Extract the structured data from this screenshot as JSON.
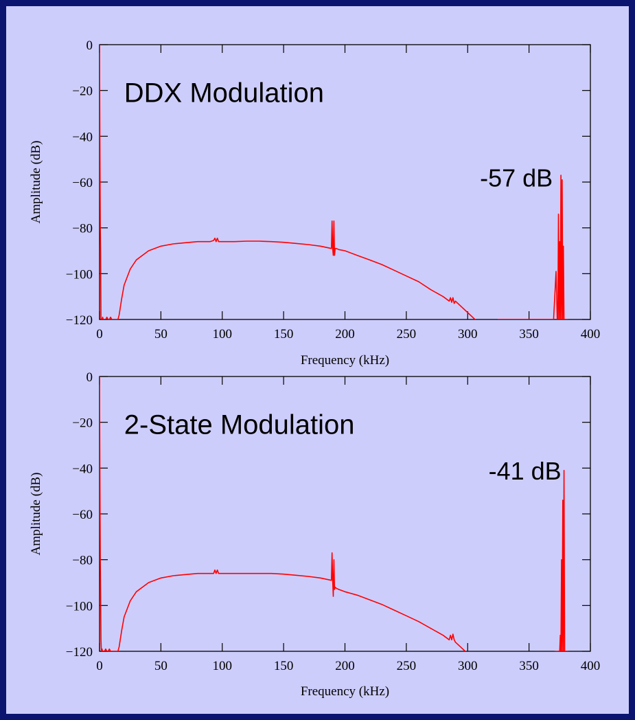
{
  "colors": {
    "background": "#cdcdfb",
    "border": "#0b1570",
    "trace": "#ff0000",
    "axis": "#000000"
  },
  "chart_data": [
    {
      "type": "line",
      "annotations": [
        {
          "text": "DDX Modulation",
          "x": 20,
          "y": -25
        },
        {
          "text": "-57 dB",
          "x": 310,
          "y": -62
        }
      ],
      "xlabel": "Frequency (kHz)",
      "ylabel": "Amplitude (dB)",
      "xlim": [
        0,
        400
      ],
      "ylim": [
        -120,
        0
      ],
      "xticks": [
        0,
        50,
        100,
        150,
        200,
        250,
        300,
        350,
        400
      ],
      "yticks": [
        0,
        -20,
        -40,
        -60,
        -80,
        -100,
        -120
      ],
      "grid": false,
      "series": [
        {
          "x": [
            0,
            0.3,
            0.6,
            0.9,
            1.2,
            1.5,
            1.8,
            2,
            2.5,
            3,
            4,
            5,
            6,
            7,
            8,
            9,
            10,
            12,
            14,
            15,
            16,
            18,
            20,
            25,
            30,
            40,
            50,
            60,
            70,
            80,
            90,
            93,
            94,
            95,
            96,
            97,
            98,
            100,
            110,
            120,
            130,
            140,
            150,
            160,
            170,
            180,
            189,
            189.5,
            190,
            190.5,
            191,
            191.5,
            192,
            193,
            195,
            200,
            210,
            220,
            230,
            240,
            250,
            260,
            270,
            280,
            285,
            286,
            287,
            288,
            289,
            290,
            300,
            310,
            320,
            325,
            370,
            372,
            373,
            373.5,
            374,
            374.5,
            375,
            375.5,
            376,
            376.5,
            377,
            377.5,
            378,
            378.5,
            379,
            379.5,
            380,
            380.5,
            381,
            381.5,
            382
          ],
          "y": [
            0,
            -40,
            -80,
            -91,
            -120,
            -120,
            -120,
            -120,
            -119,
            -120,
            -120,
            -120,
            -119,
            -120,
            -120,
            -119,
            -120,
            -120,
            -120,
            -120,
            -118,
            -111,
            -105,
            -98,
            -94,
            -90,
            -88,
            -87,
            -86.5,
            -86,
            -86,
            -85.5,
            -84.5,
            -86,
            -84.5,
            -86,
            -86,
            -86,
            -86,
            -85.8,
            -85.8,
            -86,
            -86.3,
            -86.8,
            -87.3,
            -88,
            -89,
            -77,
            -89,
            -92,
            -77,
            -92,
            -89,
            -89,
            -89.5,
            -90,
            -92,
            -94,
            -96,
            -98.5,
            -101,
            -103.5,
            -107,
            -110,
            -112,
            -110.5,
            -112.5,
            -110.5,
            -113,
            -112,
            -117,
            -122,
            -127,
            -120,
            -120,
            -99,
            -120,
            -120,
            -74,
            -120,
            -86,
            -120,
            -57,
            -120,
            -59,
            -120,
            -88,
            -120,
            -120,
            -120,
            -120,
            -120,
            -120,
            -120,
            -120
          ]
        }
      ]
    },
    {
      "type": "line",
      "annotations": [
        {
          "text": "2-State Modulation",
          "x": 20,
          "y": -25
        },
        {
          "text": "-41 dB",
          "x": 317,
          "y": -45
        }
      ],
      "xlabel": "Frequency (kHz)",
      "ylabel": "Amplitude (dB)",
      "xlim": [
        0,
        400
      ],
      "ylim": [
        -120,
        0
      ],
      "xticks": [
        0,
        50,
        100,
        150,
        200,
        250,
        300,
        350,
        400
      ],
      "yticks": [
        0,
        -20,
        -40,
        -60,
        -80,
        -100,
        -120
      ],
      "grid": false,
      "series": [
        {
          "x": [
            0,
            0.3,
            0.6,
            0.9,
            1.2,
            1.5,
            2,
            2.5,
            3,
            4,
            5,
            6,
            7,
            8,
            9,
            10,
            12,
            14,
            15,
            16,
            18,
            20,
            25,
            30,
            40,
            50,
            60,
            70,
            80,
            90,
            93,
            94,
            95,
            96,
            97,
            98,
            100,
            110,
            120,
            130,
            140,
            150,
            160,
            170,
            180,
            189,
            189.5,
            190,
            190.5,
            191,
            191.5,
            192,
            193,
            195,
            200,
            210,
            220,
            230,
            240,
            250,
            260,
            270,
            280,
            285,
            286,
            287,
            288,
            289,
            290,
            300,
            305,
            374,
            375,
            375.5,
            376,
            376.5,
            377,
            377.5,
            378,
            378.5,
            379,
            379.5,
            380,
            380.5,
            381,
            381.5,
            382
          ],
          "y": [
            0,
            -40,
            -80,
            -95,
            -115,
            -120,
            -119,
            -120,
            -120,
            -120,
            -119,
            -120,
            -120,
            -119,
            -120,
            -120,
            -120,
            -120,
            -120,
            -118,
            -111,
            -105,
            -98,
            -94,
            -90,
            -88,
            -87,
            -86.5,
            -86,
            -86,
            -86,
            -84.5,
            -86,
            -84.5,
            -86,
            -86,
            -86,
            -86,
            -86,
            -86,
            -86,
            -86.3,
            -86.8,
            -87.3,
            -88,
            -89,
            -77,
            -89,
            -96,
            -80,
            -93,
            -92,
            -92.5,
            -93,
            -94,
            -95.5,
            -97.5,
            -99.5,
            -102,
            -104.5,
            -107,
            -110,
            -113,
            -115,
            -113,
            -115,
            -112.5,
            -115,
            -116,
            -121,
            -124,
            -120,
            -120,
            -113,
            -120,
            -80,
            -120,
            -54,
            -120,
            -41,
            -120,
            -120,
            -120,
            -120,
            -120,
            -120,
            -120
          ]
        }
      ]
    }
  ]
}
